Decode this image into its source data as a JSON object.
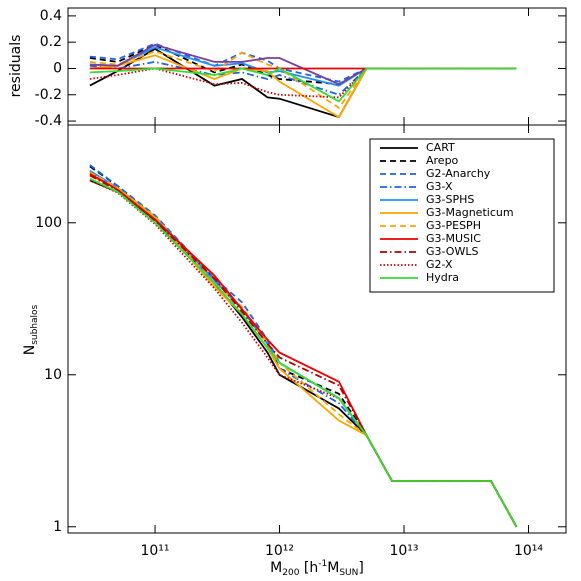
{
  "chart_data": [
    {
      "type": "line",
      "ylabel": "residuals",
      "ylim": [
        -0.43,
        0.46
      ],
      "yticks": [
        -0.4,
        -0.2,
        0.0,
        0.2,
        0.4
      ],
      "xlim": [
        20000000000.0,
        200000000000000.0
      ],
      "log_x": true,
      "x": [
        30000000000.0,
        50000000000.0,
        100000000000.0,
        300000000000.0,
        500000000000.0,
        800000000000.0,
        1000000000000.0,
        3000000000000.0,
        5000000000000.0,
        8000000000000.0,
        50000000000000.0,
        80000000000000.0
      ],
      "series": [
        {
          "color": "#000000",
          "style": "solid",
          "values": [
            -0.13,
            -0.02,
            0.15,
            -0.13,
            -0.08,
            -0.22,
            -0.23,
            -0.37,
            0,
            0,
            0,
            0
          ]
        },
        {
          "color": "#000000",
          "style": "dashed",
          "values": [
            0.08,
            0.05,
            0.18,
            -0.03,
            0.03,
            -0.05,
            -0.08,
            -0.12,
            0,
            0,
            0,
            0
          ]
        },
        {
          "color": "#1e64e6",
          "style": "dashed",
          "values": [
            0.09,
            0.07,
            0.19,
            0.02,
            0.12,
            0.06,
            0.0,
            -0.1,
            0,
            0,
            0,
            0
          ]
        },
        {
          "color": "#1e64e6",
          "style": "dashdot",
          "values": [
            0.02,
            0.0,
            0.05,
            -0.05,
            -0.03,
            -0.08,
            -0.05,
            -0.2,
            0,
            0,
            0,
            0
          ]
        },
        {
          "color": "#1e90ff",
          "style": "solid",
          "values": [
            0.03,
            0.02,
            0.16,
            0.02,
            0.04,
            -0.03,
            -0.02,
            -0.13,
            0,
            0,
            0,
            0
          ]
        },
        {
          "color": "#ffa500",
          "style": "solid",
          "values": [
            0.0,
            0.02,
            0.1,
            -0.08,
            0.0,
            -0.02,
            -0.1,
            -0.37,
            0,
            0,
            0,
            0
          ]
        },
        {
          "color": "#ffa500",
          "style": "dashed",
          "values": [
            0.05,
            0.03,
            0.13,
            -0.02,
            0.12,
            0.03,
            0.0,
            -0.3,
            0,
            0,
            0,
            0
          ]
        },
        {
          "color": "#7a3fa0",
          "style": "solid",
          "values": [
            0.03,
            0.02,
            0.18,
            0.05,
            0.05,
            0.08,
            0.08,
            -0.12,
            0,
            0,
            0,
            0
          ]
        },
        {
          "color": "#ee0000",
          "style": "solid",
          "values": [
            0,
            0,
            0,
            0,
            0,
            0,
            0,
            0,
            0,
            0,
            0,
            0
          ]
        },
        {
          "color": "#cc0000",
          "style": "dotted",
          "values": [
            -0.08,
            -0.05,
            0.0,
            -0.12,
            -0.11,
            -0.18,
            -0.2,
            -0.22,
            0,
            0,
            0,
            0
          ]
        },
        {
          "color": "#33dd33",
          "style": "solid",
          "values": [
            -0.03,
            -0.02,
            0.0,
            -0.05,
            0.0,
            -0.05,
            0.0,
            -0.25,
            0,
            0,
            0,
            0
          ]
        }
      ]
    },
    {
      "type": "line",
      "ylabel_parts": [
        "N",
        "subhalos"
      ],
      "xlabel_parts": [
        "M",
        "200",
        " [h",
        "-1",
        "M",
        "SUN",
        "]"
      ],
      "log_x": true,
      "log_y": true,
      "xlim": [
        20000000000.0,
        200000000000000.0
      ],
      "ylim": [
        0.91,
        440
      ],
      "xticks": [
        {
          "value": 100000000000.0,
          "label": "10¹¹"
        },
        {
          "value": 1000000000000.0,
          "label": "10¹²"
        },
        {
          "value": 10000000000000.0,
          "label": "10¹³"
        },
        {
          "value": 100000000000000.0,
          "label": "10¹⁴"
        }
      ],
      "yticks": [
        1,
        10,
        100
      ],
      "legend": "upper right",
      "x": [
        30000000000.0,
        50000000000.0,
        100000000000.0,
        300000000000.0,
        500000000000.0,
        800000000000.0,
        1000000000000.0,
        3000000000000.0,
        5000000000000.0,
        8000000000000.0,
        50000000000000.0,
        80000000000000.0
      ],
      "series": [
        {
          "name": "CART",
          "color": "#000000",
          "style": "solid",
          "values": [
            190,
            160,
            105,
            40,
            24,
            14,
            10,
            6,
            4,
            2,
            2,
            1
          ]
        },
        {
          "name": "Arepo",
          "color": "#000000",
          "style": "dashed",
          "values": [
            235,
            175,
            110,
            42,
            27,
            16,
            11,
            7.5,
            4,
            2,
            2,
            1
          ]
        },
        {
          "name": "G2-Anarchy",
          "color": "#1e64e6",
          "style": "dashed",
          "values": [
            240,
            175,
            112,
            43,
            30,
            17,
            12,
            7,
            4,
            2,
            2,
            1
          ]
        },
        {
          "name": "G3-X",
          "color": "#1e64e6",
          "style": "dashdot",
          "values": [
            215,
            165,
            105,
            40,
            25,
            15,
            11,
            6.5,
            4,
            2,
            2,
            1
          ]
        },
        {
          "name": "G3-SPHS",
          "color": "#1e90ff",
          "style": "solid",
          "values": [
            220,
            170,
            110,
            42,
            27,
            16,
            12,
            7,
            4,
            2,
            2,
            1
          ]
        },
        {
          "name": "G3-Magneticum",
          "color": "#ffa500",
          "style": "solid",
          "values": [
            205,
            168,
            108,
            38,
            25,
            15,
            11,
            5,
            4,
            2,
            2,
            1
          ]
        },
        {
          "name": "G3-PESPH",
          "color": "#ffa500",
          "style": "dashed",
          "values": [
            215,
            170,
            110,
            40,
            28,
            16,
            12,
            5.5,
            4,
            2,
            2,
            1
          ]
        },
        {
          "name": "G3-MUSIC",
          "color": "#ee0000",
          "style": "solid",
          "values": [
            210,
            165,
            105,
            45,
            27,
            17,
            14,
            9,
            4,
            2,
            2,
            1
          ]
        },
        {
          "name": "G3-OWLS",
          "color": "#b00000",
          "style": "dashdot",
          "values": [
            205,
            163,
            103,
            43,
            26,
            16,
            13,
            8.5,
            4,
            2,
            2,
            1
          ]
        },
        {
          "name": "G2-X",
          "color": "#cc0000",
          "style": "dotted",
          "values": [
            190,
            158,
            98,
            37,
            22,
            13,
            10,
            7,
            4,
            2,
            2,
            1
          ]
        },
        {
          "name": "Hydra",
          "color": "#33dd33",
          "style": "solid",
          "values": [
            195,
            160,
            100,
            40,
            25,
            15,
            12,
            7,
            4,
            2,
            2,
            1
          ]
        }
      ]
    }
  ]
}
